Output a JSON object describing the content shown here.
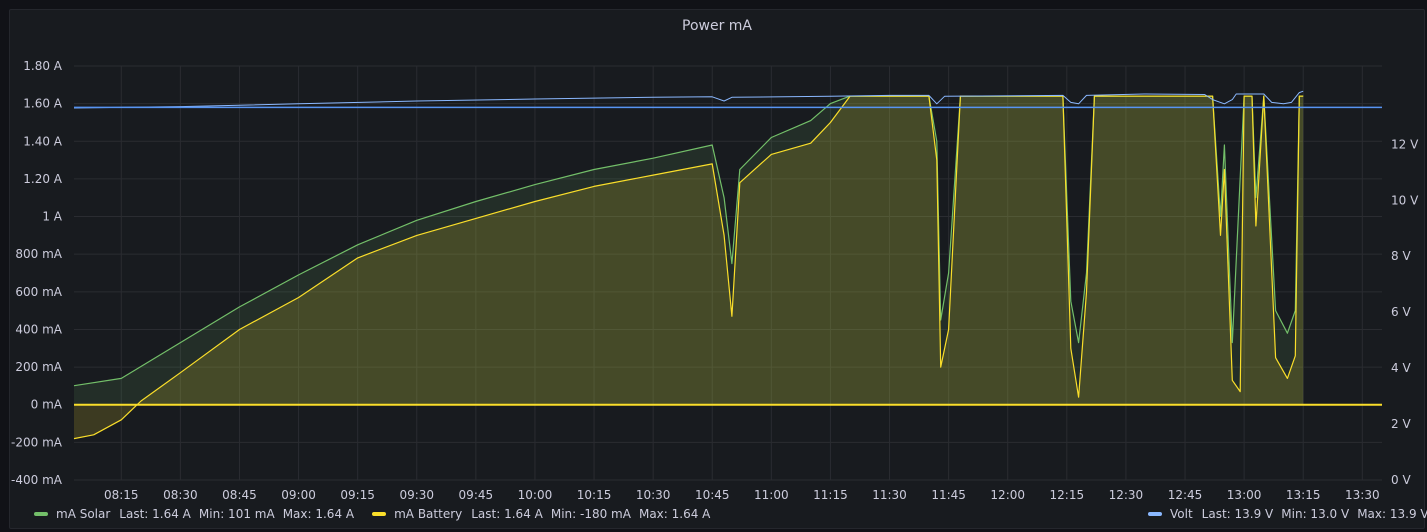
{
  "chart_data": {
    "type": "line",
    "title": "Power mA",
    "x_ticks": [
      "08:15",
      "08:30",
      "08:45",
      "09:00",
      "09:15",
      "09:30",
      "09:45",
      "10:00",
      "10:15",
      "10:30",
      "10:45",
      "11:00",
      "11:15",
      "11:30",
      "11:45",
      "12:00",
      "12:15",
      "12:30",
      "12:45",
      "13:00",
      "13:15",
      "13:30"
    ],
    "y_left_ticks": [
      "-400 mA",
      "-200 mA",
      "0 mA",
      "200 mA",
      "400 mA",
      "600 mA",
      "800 mA",
      "1 A",
      "1.20 A",
      "1.40 A",
      "1.60 A",
      "1.80 A"
    ],
    "y_left_range_mA": [
      -400,
      1800
    ],
    "y_right_ticks": [
      "0 V",
      "2 V",
      "4 V",
      "6 V",
      "8 V",
      "10 V",
      "12 V"
    ],
    "y_right_range_V": [
      0,
      14.8
    ],
    "x_range": [
      "08:03",
      "13:35"
    ],
    "threshold": {
      "value_mA": 1580,
      "color": "#5794f2"
    },
    "series": [
      {
        "name": "mA Solar",
        "color": "#73bf69",
        "axis": "left",
        "legend": {
          "last": "Last: 1.64 A",
          "min": "Min: 101 mA",
          "max": "Max: 1.64 A"
        },
        "points": [
          [
            "08:03",
            101
          ],
          [
            "08:15",
            140
          ],
          [
            "08:30",
            330
          ],
          [
            "08:45",
            520
          ],
          [
            "09:00",
            690
          ],
          [
            "09:15",
            850
          ],
          [
            "09:30",
            980
          ],
          [
            "09:45",
            1080
          ],
          [
            "10:00",
            1170
          ],
          [
            "10:15",
            1250
          ],
          [
            "10:30",
            1310
          ],
          [
            "10:45",
            1380
          ],
          [
            "10:48",
            1100
          ],
          [
            "10:50",
            750
          ],
          [
            "10:52",
            1250
          ],
          [
            "11:00",
            1420
          ],
          [
            "11:10",
            1510
          ],
          [
            "11:15",
            1600
          ],
          [
            "11:20",
            1640
          ],
          [
            "11:40",
            1640
          ],
          [
            "11:42",
            1400
          ],
          [
            "11:43",
            450
          ],
          [
            "11:45",
            700
          ],
          [
            "11:48",
            1640
          ],
          [
            "12:14",
            1640
          ],
          [
            "12:16",
            550
          ],
          [
            "12:18",
            330
          ],
          [
            "12:20",
            700
          ],
          [
            "12:22",
            1640
          ],
          [
            "12:52",
            1640
          ],
          [
            "12:54",
            1000
          ],
          [
            "12:55",
            1380
          ],
          [
            "12:57",
            330
          ],
          [
            "13:00",
            1640
          ],
          [
            "13:02",
            1640
          ],
          [
            "13:03",
            1100
          ],
          [
            "13:05",
            1640
          ],
          [
            "13:08",
            500
          ],
          [
            "13:11",
            380
          ],
          [
            "13:13",
            500
          ],
          [
            "13:14",
            1640
          ],
          [
            "13:15",
            1640
          ]
        ]
      },
      {
        "name": "mA Battery",
        "color": "#fade2a",
        "axis": "left",
        "legend": {
          "last": "Last: 1.64 A",
          "min": "Min: -180 mA",
          "max": "Max: 1.64 A"
        },
        "points": [
          [
            "08:03",
            -180
          ],
          [
            "08:08",
            -160
          ],
          [
            "08:15",
            -80
          ],
          [
            "08:20",
            20
          ],
          [
            "08:30",
            170
          ],
          [
            "08:45",
            400
          ],
          [
            "09:00",
            570
          ],
          [
            "09:15",
            780
          ],
          [
            "09:30",
            900
          ],
          [
            "09:45",
            990
          ],
          [
            "10:00",
            1080
          ],
          [
            "10:15",
            1160
          ],
          [
            "10:30",
            1220
          ],
          [
            "10:45",
            1280
          ],
          [
            "10:48",
            900
          ],
          [
            "10:50",
            470
          ],
          [
            "10:52",
            1180
          ],
          [
            "11:00",
            1330
          ],
          [
            "11:10",
            1390
          ],
          [
            "11:15",
            1500
          ],
          [
            "11:20",
            1640
          ],
          [
            "11:40",
            1640
          ],
          [
            "11:42",
            1300
          ],
          [
            "11:43",
            200
          ],
          [
            "11:45",
            400
          ],
          [
            "11:48",
            1640
          ],
          [
            "12:14",
            1640
          ],
          [
            "12:16",
            300
          ],
          [
            "12:18",
            40
          ],
          [
            "12:20",
            600
          ],
          [
            "12:22",
            1640
          ],
          [
            "12:52",
            1640
          ],
          [
            "12:54",
            900
          ],
          [
            "12:55",
            1250
          ],
          [
            "12:57",
            130
          ],
          [
            "12:59",
            70
          ],
          [
            "13:00",
            1640
          ],
          [
            "13:02",
            1640
          ],
          [
            "13:03",
            950
          ],
          [
            "13:05",
            1640
          ],
          [
            "13:08",
            250
          ],
          [
            "13:11",
            140
          ],
          [
            "13:13",
            260
          ],
          [
            "13:14",
            1640
          ],
          [
            "13:15",
            1640
          ]
        ]
      },
      {
        "name": "Volt",
        "color": "#8ab8ff",
        "axis": "right",
        "legend": {
          "last": "Last: 13.9 V",
          "min": "Min: 13.0 V",
          "max": "Max: 13.9 V"
        },
        "points": [
          [
            "08:03",
            13.3
          ],
          [
            "08:30",
            13.35
          ],
          [
            "09:00",
            13.45
          ],
          [
            "09:30",
            13.55
          ],
          [
            "10:00",
            13.62
          ],
          [
            "10:30",
            13.68
          ],
          [
            "10:45",
            13.7
          ],
          [
            "10:48",
            13.55
          ],
          [
            "10:50",
            13.68
          ],
          [
            "11:15",
            13.72
          ],
          [
            "11:30",
            13.75
          ],
          [
            "11:40",
            13.75
          ],
          [
            "11:42",
            13.45
          ],
          [
            "11:44",
            13.72
          ],
          [
            "12:14",
            13.75
          ],
          [
            "12:16",
            13.5
          ],
          [
            "12:18",
            13.45
          ],
          [
            "12:20",
            13.75
          ],
          [
            "12:35",
            13.8
          ],
          [
            "12:50",
            13.78
          ],
          [
            "12:52",
            13.6
          ],
          [
            "12:55",
            13.45
          ],
          [
            "12:57",
            13.6
          ],
          [
            "12:58",
            13.8
          ],
          [
            "13:05",
            13.8
          ],
          [
            "13:07",
            13.5
          ],
          [
            "13:10",
            13.45
          ],
          [
            "13:12",
            13.5
          ],
          [
            "13:14",
            13.85
          ],
          [
            "13:15",
            13.9
          ]
        ]
      }
    ]
  }
}
